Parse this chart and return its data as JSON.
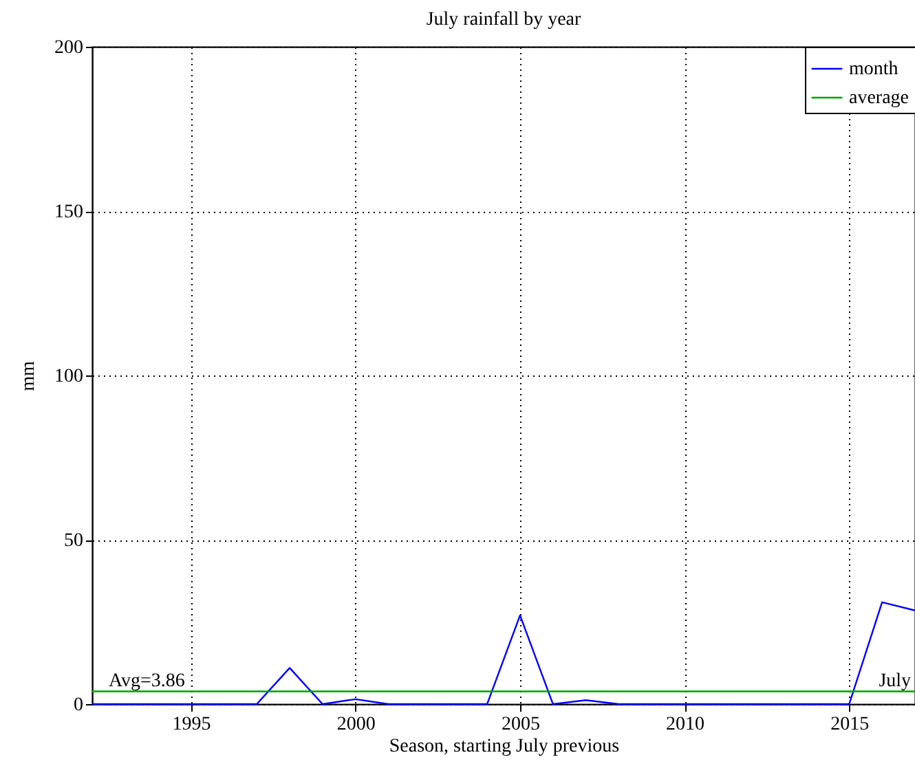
{
  "chart_data": {
    "type": "line",
    "title": "July rainfall by year",
    "xlabel": "Season, starting July previous",
    "ylabel": "mm",
    "x": [
      1992,
      1993,
      1994,
      1995,
      1996,
      1997,
      1998,
      1999,
      2000,
      2001,
      2002,
      2003,
      2004,
      2005,
      2006,
      2007,
      2008,
      2009,
      2010,
      2011,
      2012,
      2013,
      2014,
      2015,
      2016,
      2017
    ],
    "series": [
      {
        "name": "month",
        "color": "#0000ff",
        "values": [
          0,
          0,
          0,
          0,
          0,
          0,
          11,
          0,
          1.5,
          0,
          0,
          0,
          0,
          27,
          0,
          1.2,
          0,
          0,
          0,
          0,
          0,
          0,
          0,
          0,
          31,
          28.5
        ]
      },
      {
        "name": "average",
        "color": "#00a000",
        "values": [
          3.86,
          3.86,
          3.86,
          3.86,
          3.86,
          3.86,
          3.86,
          3.86,
          3.86,
          3.86,
          3.86,
          3.86,
          3.86,
          3.86,
          3.86,
          3.86,
          3.86,
          3.86,
          3.86,
          3.86,
          3.86,
          3.86,
          3.86,
          3.86,
          3.86,
          3.86
        ]
      }
    ],
    "annotations": [
      {
        "text": "Avg=3.86",
        "x": 1992.5,
        "y": 3.86
      },
      {
        "text": "July",
        "x": 2015.9,
        "y": 3.86
      }
    ],
    "xlim": [
      1992,
      2017
    ],
    "xticks": [
      1995,
      2000,
      2005,
      2010,
      2015
    ],
    "ylim": [
      0,
      200
    ],
    "yticks": [
      0,
      50,
      100,
      150,
      200
    ],
    "grid": true,
    "legend": "top right"
  }
}
